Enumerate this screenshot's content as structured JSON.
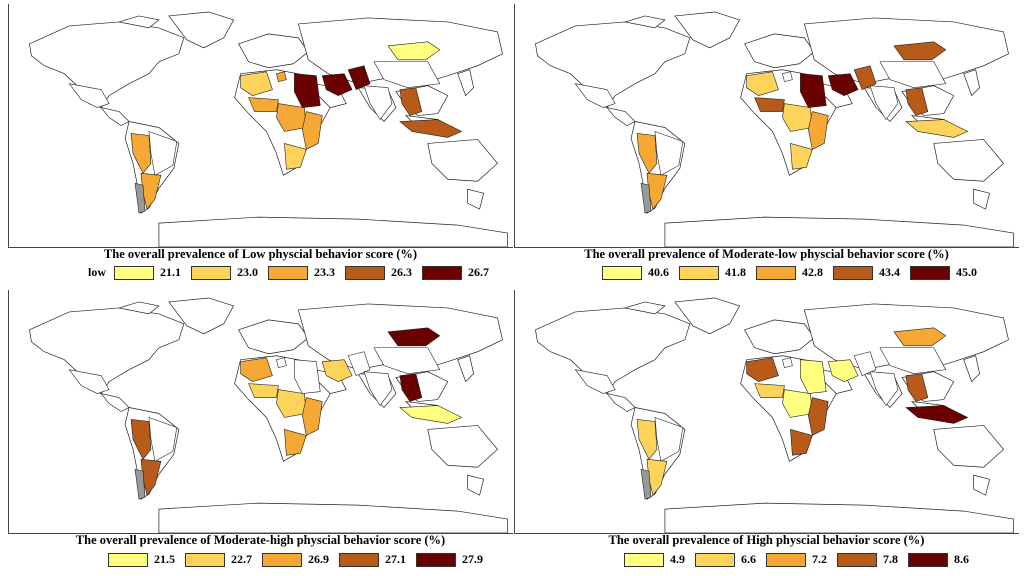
{
  "colors": {
    "c1": "#ffff80",
    "c2": "#fdd35a",
    "c3": "#f5a833",
    "c4": "#b85a1a",
    "c5": "#6b0000",
    "ocean": "#ffffff",
    "gray": "#999999"
  },
  "panels": [
    {
      "title": "The overall prevalence of Low physcial behavior score (%)",
      "legend_lead": "low",
      "legend": [
        "21.1",
        "23.0",
        "23.3",
        "26.3",
        "26.7"
      ],
      "fills": {
        "mongolia": "c1",
        "mexico": "c0",
        "southam_west": "c3",
        "argentina": "c3",
        "chile": "gray",
        "brazil": "c0",
        "westafrica": "c2",
        "westafrica2": "c3",
        "centralafrica": "c3",
        "eastafrica": "c3",
        "southafrica": "c2",
        "egypt_sudan": "c5",
        "middleeast": "c5",
        "pakistan": "c5",
        "india": "c0",
        "seasia": "c4",
        "indonesia": "c4",
        "china": "c0",
        "europe_spot": "c3"
      }
    },
    {
      "title": "The overall prevalence of Moderate-low physcial behavior score (%)",
      "legend_lead": "",
      "legend": [
        "40.6",
        "41.8",
        "42.8",
        "43.4",
        "45.0"
      ],
      "fills": {
        "mongolia": "c4",
        "mexico": "c0",
        "southam_west": "c3",
        "argentina": "c3",
        "chile": "gray",
        "brazil": "c0",
        "westafrica": "c2",
        "westafrica2": "c4",
        "centralafrica": "c2",
        "eastafrica": "c3",
        "southafrica": "c2",
        "egypt_sudan": "c5",
        "middleeast": "c5",
        "pakistan": "c4",
        "india": "c0",
        "seasia": "c4",
        "indonesia": "c2",
        "china": "c0",
        "europe_spot": "c0"
      }
    },
    {
      "title": "The overall prevalence of Moderate-high physcial behavior score (%)",
      "legend_lead": "",
      "legend": [
        "21.5",
        "22.7",
        "26.9",
        "27.1",
        "27.9"
      ],
      "fills": {
        "mongolia": "c5",
        "mexico": "c0",
        "southam_west": "c4",
        "argentina": "c4",
        "chile": "gray",
        "brazil": "c0",
        "westafrica": "c3",
        "westafrica2": "c2",
        "centralafrica": "c2",
        "eastafrica": "c3",
        "southafrica": "c3",
        "egypt_sudan": "c0",
        "middleeast": "c2",
        "pakistan": "c0",
        "india": "c0",
        "seasia": "c5",
        "indonesia": "c1",
        "china": "c0",
        "europe_spot": "c0"
      }
    },
    {
      "title": "The overall prevalence of High physcial behavior score (%)",
      "legend_lead": "",
      "legend": [
        "4.9",
        "6.6",
        "7.2",
        "7.8",
        "8.6"
      ],
      "fills": {
        "mongolia": "c3",
        "mexico": "c0",
        "southam_west": "c2",
        "argentina": "c2",
        "chile": "gray",
        "brazil": "c0",
        "westafrica": "c4",
        "westafrica2": "c2",
        "centralafrica": "c1",
        "eastafrica": "c4",
        "southafrica": "c4",
        "egypt_sudan": "c1",
        "middleeast": "c1",
        "pakistan": "c0",
        "india": "c0",
        "seasia": "c4",
        "indonesia": "c5",
        "china": "c0",
        "europe_spot": "c0"
      }
    }
  ]
}
